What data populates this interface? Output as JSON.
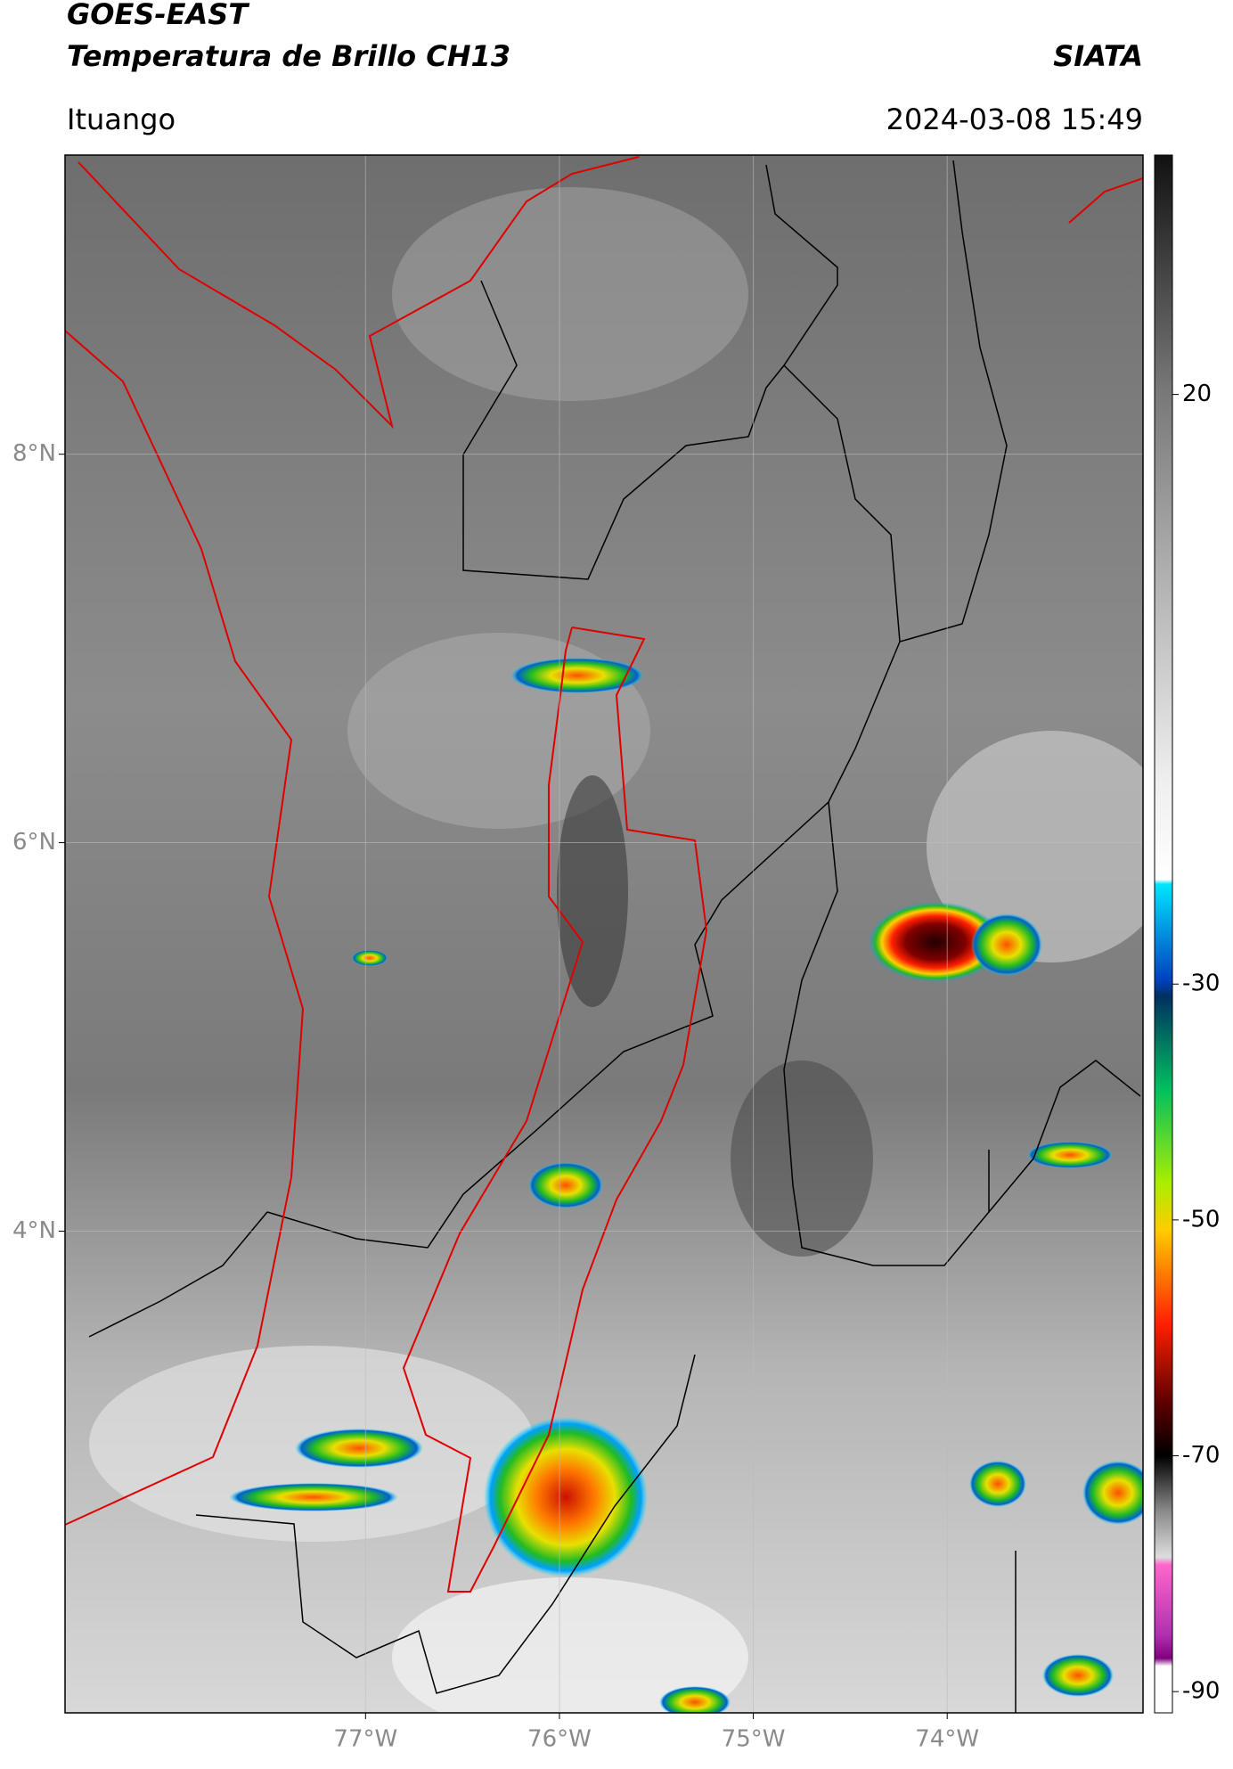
{
  "header": {
    "title": "GOES-EAST",
    "subtitle": "Temperatura de Brillo CH13",
    "source": "SIATA",
    "region": "Ituango",
    "datetime": "2024-03-08 15:49"
  },
  "chart_data": {
    "type": "map",
    "xlim": [
      -78.55,
      -72.99
    ],
    "ylim": [
      1.52,
      9.54
    ],
    "xticks": [
      {
        "value": -77,
        "label": "77°W"
      },
      {
        "value": -76,
        "label": "76°W"
      },
      {
        "value": -75,
        "label": "75°W"
      },
      {
        "value": -74,
        "label": "74°W"
      }
    ],
    "yticks": [
      {
        "value": 8,
        "label": "8°N"
      },
      {
        "value": 6,
        "label": "6°N"
      },
      {
        "value": 4,
        "label": "4°N"
      }
    ],
    "grid": true
  },
  "colorbar": {
    "lim": [
      -91.8,
      40.3
    ],
    "ticks": [
      20,
      -30,
      -50,
      -70,
      -90
    ]
  }
}
